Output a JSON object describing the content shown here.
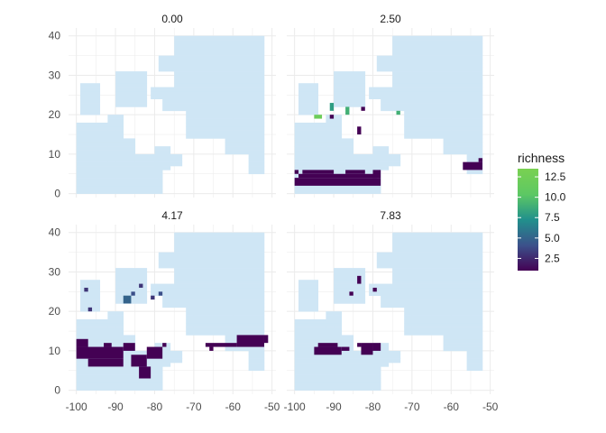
{
  "chart_data": {
    "type": "heatmap",
    "title": "",
    "xlabel": "",
    "ylabel": "",
    "xlim": [
      -102,
      -49
    ],
    "ylim": [
      -1,
      42
    ],
    "x_ticks": [
      -100,
      -90,
      -80,
      -70,
      -60,
      -50
    ],
    "x_tick_labels": [
      "-100",
      "-90",
      "-80",
      "-70",
      "-60",
      "-50"
    ],
    "y_ticks": [
      0,
      10,
      20,
      30,
      40
    ],
    "y_tick_labels": [
      "0",
      "10",
      "20",
      "30",
      "40"
    ],
    "grid": true,
    "land_color": "#cfe6f5",
    "legend": {
      "title": "richness",
      "position": "right",
      "range": [
        1,
        13.5
      ],
      "ticks": [
        2.5,
        5.0,
        7.5,
        10.0,
        12.5
      ],
      "tick_labels": [
        "2.5",
        "5.0",
        "7.5",
        "10.0",
        "12.5"
      ],
      "colors": [
        "#440154",
        "#3b528b",
        "#21908c",
        "#5dc863",
        "#7ad151"
      ]
    },
    "panels": [
      {
        "label": "0.00",
        "cells": []
      },
      {
        "label": "2.50",
        "cells": [
          {
            "x": -95,
            "y": 19,
            "w": 2,
            "h": 1,
            "v": 12
          },
          {
            "x": -91,
            "y": 21,
            "w": 1,
            "h": 2,
            "v": 8
          },
          {
            "x": -91,
            "y": 19,
            "w": 1,
            "h": 1,
            "v": 1
          },
          {
            "x": -87,
            "y": 20,
            "w": 1,
            "h": 2,
            "v": 9
          },
          {
            "x": -83,
            "y": 21,
            "w": 1,
            "h": 1,
            "v": 1
          },
          {
            "x": -74,
            "y": 20,
            "w": 1,
            "h": 1,
            "v": 9
          },
          {
            "x": -84,
            "y": 15,
            "w": 1,
            "h": 2,
            "v": 1
          },
          {
            "x": -100,
            "y": 5,
            "w": 1,
            "h": 1,
            "v": 1
          },
          {
            "x": -100,
            "y": 2,
            "w": 22,
            "h": 2,
            "v": 1
          },
          {
            "x": -99,
            "y": 4,
            "w": 20,
            "h": 1,
            "v": 1
          },
          {
            "x": -98,
            "y": 5,
            "w": 8,
            "h": 1,
            "v": 1
          },
          {
            "x": -87,
            "y": 5,
            "w": 5,
            "h": 1,
            "v": 1
          },
          {
            "x": -80,
            "y": 4,
            "w": 2,
            "h": 2,
            "v": 1
          },
          {
            "x": -57,
            "y": 6,
            "w": 5,
            "h": 2,
            "v": 1
          },
          {
            "x": -53,
            "y": 8,
            "w": 1,
            "h": 1,
            "v": 1
          }
        ]
      },
      {
        "label": "4.17",
        "cells": [
          {
            "x": -98,
            "y": 25,
            "w": 1,
            "h": 1,
            "v": 3
          },
          {
            "x": -97,
            "y": 20,
            "w": 1,
            "h": 1,
            "v": 3
          },
          {
            "x": -88,
            "y": 22,
            "w": 2,
            "h": 2,
            "v": 5
          },
          {
            "x": -86,
            "y": 24,
            "w": 1,
            "h": 1,
            "v": 4
          },
          {
            "x": -84,
            "y": 26,
            "w": 1,
            "h": 1,
            "v": 3
          },
          {
            "x": -81,
            "y": 23,
            "w": 1,
            "h": 1,
            "v": 3
          },
          {
            "x": -79,
            "y": 24,
            "w": 1,
            "h": 1,
            "v": 4
          },
          {
            "x": -100,
            "y": 8,
            "w": 12,
            "h": 3,
            "v": 1
          },
          {
            "x": -100,
            "y": 11,
            "w": 3,
            "h": 2,
            "v": 1
          },
          {
            "x": -97,
            "y": 6,
            "w": 9,
            "h": 2,
            "v": 1
          },
          {
            "x": -93,
            "y": 11,
            "w": 2,
            "h": 1,
            "v": 1
          },
          {
            "x": -88,
            "y": 10,
            "w": 3,
            "h": 2,
            "v": 1
          },
          {
            "x": -86,
            "y": 6,
            "w": 4,
            "h": 3,
            "v": 1
          },
          {
            "x": -84,
            "y": 3,
            "w": 3,
            "h": 3,
            "v": 1
          },
          {
            "x": -82,
            "y": 8,
            "w": 4,
            "h": 3,
            "v": 1
          },
          {
            "x": -78,
            "y": 11,
            "w": 1,
            "h": 1,
            "v": 1
          },
          {
            "x": -67,
            "y": 11,
            "w": 8,
            "h": 1,
            "v": 1
          },
          {
            "x": -59,
            "y": 11,
            "w": 7,
            "h": 3,
            "v": 1
          },
          {
            "x": -52,
            "y": 12,
            "w": 1,
            "h": 2,
            "v": 1
          },
          {
            "x": -66,
            "y": 10,
            "w": 1,
            "h": 1,
            "v": 1
          }
        ]
      },
      {
        "label": "7.83",
        "cells": [
          {
            "x": -84,
            "y": 27,
            "w": 1,
            "h": 2,
            "v": 1
          },
          {
            "x": -80,
            "y": 25,
            "w": 1,
            "h": 1,
            "v": 1
          },
          {
            "x": -86,
            "y": 24,
            "w": 1,
            "h": 1,
            "v": 1
          },
          {
            "x": -95,
            "y": 9,
            "w": 7,
            "h": 2,
            "v": 1
          },
          {
            "x": -94,
            "y": 11,
            "w": 5,
            "h": 1,
            "v": 1
          },
          {
            "x": -88,
            "y": 10,
            "w": 2,
            "h": 1,
            "v": 1
          },
          {
            "x": -83,
            "y": 9,
            "w": 3,
            "h": 3,
            "v": 1
          },
          {
            "x": -80,
            "y": 10,
            "w": 2,
            "h": 2,
            "v": 1
          },
          {
            "x": -84,
            "y": 11,
            "w": 1,
            "h": 1,
            "v": 1
          }
        ]
      }
    ]
  }
}
